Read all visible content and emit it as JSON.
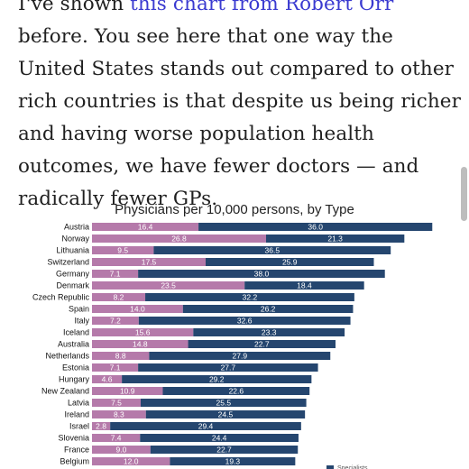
{
  "article": {
    "line1_pre": "I've shown ",
    "line1_link": "this chart from Robert Orr",
    "line1_post": " before.",
    "body": "You see here that one way the United States stands out compared to other rich countries is that despite us being richer and having worse population health outcomes, we have fewer doctors — and radically fewer GPs."
  },
  "colors": {
    "gp": "#b57aaa",
    "specialist": "#25466f",
    "link": "#3a3ad0"
  },
  "chart_data": {
    "type": "bar",
    "orientation": "horizontal",
    "stacked": true,
    "title": "Physicians per 10,000 persons, by Type",
    "categories": [
      "Austria",
      "Norway",
      "Lithuania",
      "Switzerland",
      "Germany",
      "Denmark",
      "Czech Republic",
      "Spain",
      "Italy",
      "Iceland",
      "Australia",
      "Netherlands",
      "Estonia",
      "Hungary",
      "New Zealand",
      "Latvia",
      "Ireland",
      "Israel",
      "Slovenia",
      "France",
      "Belgium"
    ],
    "series": [
      {
        "name": "",
        "color": "#b57aaa",
        "values": [
          16.4,
          26.8,
          9.5,
          17.5,
          7.1,
          23.5,
          8.2,
          14.0,
          7.2,
          15.6,
          14.8,
          8.8,
          7.1,
          4.6,
          10.9,
          7.5,
          8.3,
          2.8,
          7.4,
          9.0,
          12.0
        ]
      },
      {
        "name": "",
        "color": "#25466f",
        "values": [
          36.0,
          21.3,
          36.5,
          25.9,
          38.0,
          18.4,
          32.2,
          26.2,
          32.6,
          23.3,
          22.7,
          27.9,
          27.7,
          29.2,
          22.6,
          25.5,
          24.5,
          29.4,
          24.4,
          22.7,
          19.3
        ]
      }
    ],
    "legend": {
      "text": "Specialists",
      "placement": "bottom-right"
    },
    "grid": false
  }
}
